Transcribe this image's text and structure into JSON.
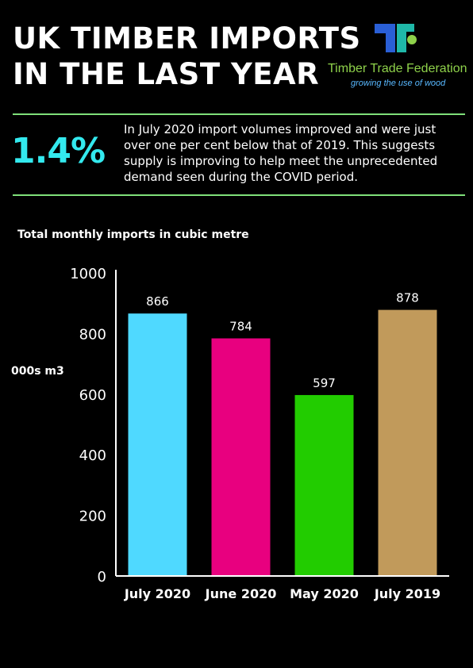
{
  "header": {
    "title_lines": [
      "UK TIMBER IMPORTS",
      "IN THE LAST YEAR"
    ]
  },
  "logo": {
    "name": "Timber Trade Federation",
    "tagline": "growing the use of wood",
    "colors": {
      "blue": "#2a5fd6",
      "teal": "#1fb8a8",
      "green": "#8ed14a"
    }
  },
  "highlight": {
    "stat": "1.4%",
    "text": "In July 2020 import volumes improved and were just over one per cent below that of 2019. This suggests supply is improving to help meet the unprecedented demand seen during the COVID period."
  },
  "chart_data": {
    "type": "bar",
    "title": "Total monthly imports in cubic metre",
    "ylabel": "000s m3",
    "xlabel": "",
    "categories": [
      "July 2020",
      "June 2020",
      "May 2020",
      "July 2019"
    ],
    "values": [
      866,
      784,
      597,
      878
    ],
    "data_labels": [
      "866",
      "784",
      "597",
      "878"
    ],
    "colors": [
      "#4fd9ff",
      "#e8007f",
      "#22cc00",
      "#c19a5b"
    ],
    "ylim": [
      0,
      1000
    ],
    "yticks": [
      0,
      200,
      400,
      600,
      800,
      1000
    ],
    "grid": false,
    "legend": "none"
  }
}
